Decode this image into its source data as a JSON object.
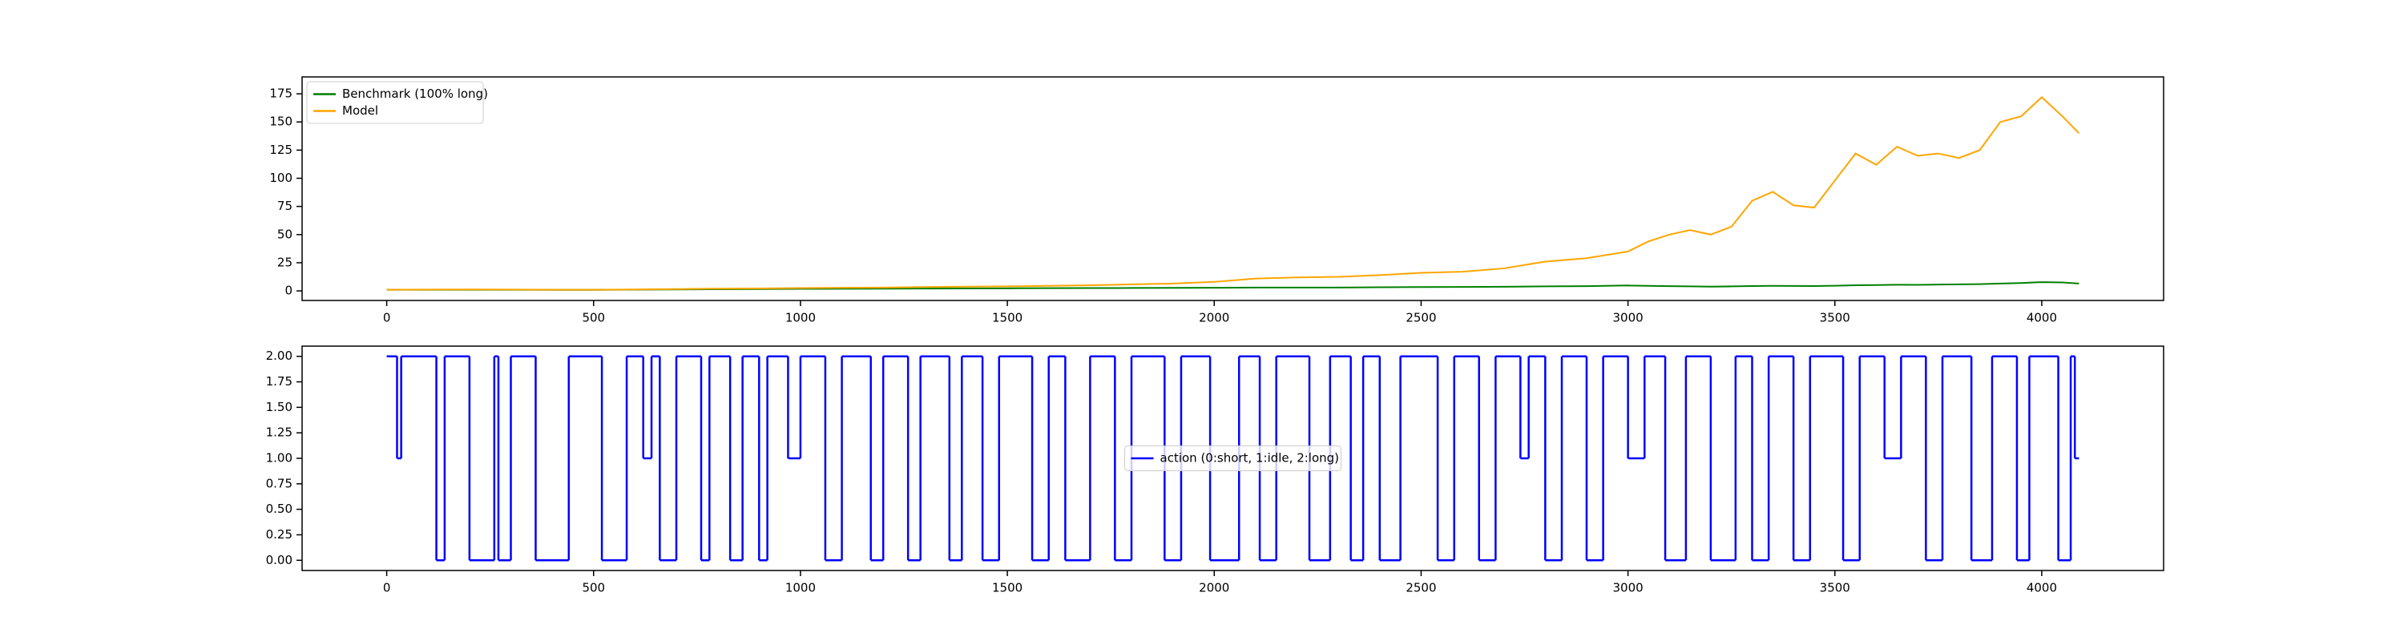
{
  "chart_data": [
    {
      "type": "line",
      "x": [
        0,
        100,
        200,
        300,
        400,
        500,
        600,
        700,
        800,
        900,
        1000,
        1100,
        1200,
        1300,
        1400,
        1500,
        1600,
        1700,
        1800,
        1900,
        2000,
        2100,
        2200,
        2300,
        2400,
        2500,
        2600,
        2700,
        2800,
        2900,
        3000,
        3050,
        3100,
        3150,
        3200,
        3250,
        3300,
        3350,
        3400,
        3450,
        3500,
        3550,
        3600,
        3650,
        3700,
        3750,
        3800,
        3850,
        3900,
        3950,
        4000,
        4050,
        4090
      ],
      "series": [
        {
          "name": "Benchmark (100% long)",
          "color": "#008000",
          "values": [
            1,
            1,
            1,
            1,
            0.9,
            0.9,
            1.1,
            1.3,
            1.5,
            1.6,
            1.8,
            1.9,
            2,
            2.1,
            2.2,
            2.3,
            2.4,
            2.5,
            2.6,
            2.7,
            2.8,
            3,
            3,
            3,
            3.2,
            3.4,
            3.5,
            3.7,
            4,
            4.2,
            4.8,
            4.5,
            4.2,
            4,
            3.8,
            4,
            4.3,
            4.5,
            4.4,
            4.3,
            4.6,
            5,
            5.2,
            5.5,
            5.4,
            5.6,
            5.8,
            6,
            6.5,
            7,
            7.8,
            7.5,
            6.5
          ]
        },
        {
          "name": "Model",
          "color": "#ffa500",
          "values": [
            1,
            1.2,
            1.3,
            1.2,
            1,
            1,
            1.3,
            1.6,
            2,
            2.2,
            2.5,
            2.8,
            3,
            3.4,
            3.8,
            4,
            4.5,
            5,
            5.8,
            6.5,
            8,
            11,
            12,
            12.5,
            14,
            16,
            17,
            20,
            26,
            29,
            35,
            44,
            50,
            54,
            50,
            57,
            80,
            88,
            76,
            74,
            98,
            122,
            112,
            128,
            120,
            122,
            118,
            125,
            150,
            155,
            172,
            155,
            140
          ]
        }
      ],
      "xlim": [
        -204.5,
        4294.5
      ],
      "xticks": [
        0,
        500,
        1000,
        1500,
        2000,
        2500,
        3000,
        3500,
        4000
      ],
      "ylim": [
        -8.5,
        190
      ],
      "yticks": [
        0,
        25,
        50,
        75,
        100,
        125,
        150,
        175
      ],
      "legend": "upper left"
    },
    {
      "type": "step",
      "x": [
        0,
        25,
        35,
        120,
        140,
        200,
        260,
        270,
        300,
        360,
        440,
        520,
        580,
        620,
        640,
        660,
        700,
        760,
        780,
        830,
        860,
        900,
        920,
        970,
        1000,
        1060,
        1100,
        1170,
        1200,
        1260,
        1290,
        1360,
        1390,
        1440,
        1480,
        1560,
        1600,
        1640,
        1700,
        1760,
        1800,
        1880,
        1920,
        1990,
        2060,
        2110,
        2150,
        2230,
        2280,
        2330,
        2360,
        2400,
        2450,
        2540,
        2580,
        2640,
        2680,
        2740,
        2760,
        2800,
        2840,
        2900,
        2940,
        3000,
        3040,
        3090,
        3140,
        3200,
        3260,
        3300,
        3340,
        3400,
        3440,
        3520,
        3560,
        3620,
        3660,
        3720,
        3760,
        3830,
        3880,
        3940,
        3970,
        4040,
        4070,
        4080,
        4090
      ],
      "series": [
        {
          "name": "action (0:short, 1:idle, 2:long)",
          "color": "#0000ff",
          "values": [
            2,
            1,
            2,
            0,
            2,
            0,
            2,
            0,
            2,
            0,
            2,
            0,
            2,
            1,
            2,
            0,
            2,
            0,
            2,
            0,
            2,
            0,
            2,
            1,
            2,
            0,
            2,
            0,
            2,
            0,
            2,
            0,
            2,
            0,
            2,
            0,
            2,
            0,
            2,
            0,
            2,
            0,
            2,
            0,
            2,
            0,
            2,
            0,
            2,
            0,
            2,
            0,
            2,
            0,
            2,
            0,
            2,
            1,
            2,
            0,
            2,
            0,
            2,
            1,
            2,
            0,
            2,
            0,
            2,
            0,
            2,
            0,
            2,
            0,
            2,
            1,
            2,
            0,
            2,
            0,
            2,
            0,
            2,
            0,
            2,
            1,
            1
          ]
        }
      ],
      "xlim": [
        -204.5,
        4294.5
      ],
      "xticks": [
        0,
        500,
        1000,
        1500,
        2000,
        2500,
        3000,
        3500,
        4000
      ],
      "ylim": [
        -0.1,
        2.1
      ],
      "yticks": [
        {
          "value": 0,
          "label": "0.00"
        },
        {
          "value": 0.25,
          "label": "0.25"
        },
        {
          "value": 0.5,
          "label": "0.50"
        },
        {
          "value": 0.75,
          "label": "0.75"
        },
        {
          "value": 1,
          "label": "1.00"
        },
        {
          "value": 1.25,
          "label": "1.25"
        },
        {
          "value": 1.5,
          "label": "1.50"
        },
        {
          "value": 1.75,
          "label": "1.75"
        },
        {
          "value": 2,
          "label": "2.00"
        }
      ],
      "legend": "center"
    }
  ]
}
